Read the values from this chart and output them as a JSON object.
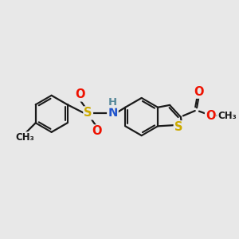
{
  "bg_color": "#e8e8e8",
  "bond_color": "#1a1a1a",
  "bond_lw": 1.6,
  "atom_colors": {
    "S": "#ccaa00",
    "N": "#2255cc",
    "O": "#ee1100",
    "H": "#558899",
    "C": "#1a1a1a"
  },
  "font_size_atom": 10.5,
  "font_size_small": 8.5
}
